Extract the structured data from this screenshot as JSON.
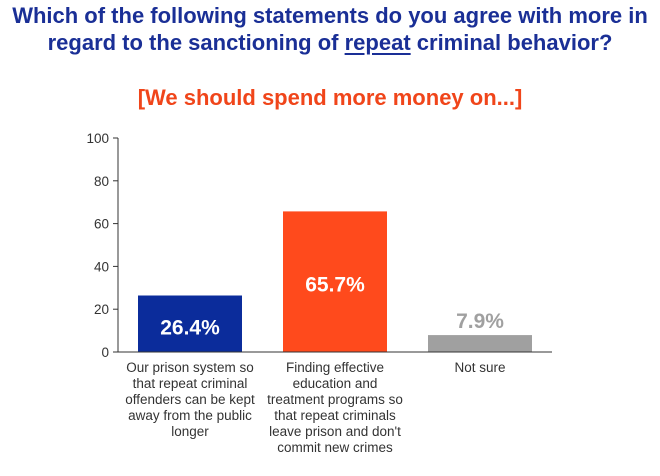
{
  "title": {
    "before": "Which of the following statements do you agree with more in regard to the sanctioning of ",
    "underlined": "repeat",
    "after": " criminal behavior?"
  },
  "subtitle": "[We should spend more money on...]",
  "colors": {
    "title": "#1a2f96",
    "subtitle": "#f0451a",
    "axis": "#333333"
  },
  "chart_data": {
    "type": "bar",
    "title": "Which of the following statements do you agree with more in regard to the sanctioning of repeat criminal behavior?",
    "subtitle": "[We should spend more money on...]",
    "categories": [
      "Our prison system so that repeat criminal offenders can be kept away from the public longer",
      "Finding effective education and treatment programs so that repeat criminals leave prison and don't commit new crimes",
      "Not sure"
    ],
    "values": [
      26.4,
      65.7,
      7.9
    ],
    "data_labels": [
      "26.4%",
      "65.7%",
      "7.9%"
    ],
    "bar_colors": [
      "#0b2c9b",
      "#ff4a1c",
      "#a0a0a0"
    ],
    "label_colors": [
      "#ffffff",
      "#ffffff",
      "#a0a0a0"
    ],
    "label_position": [
      "inside",
      "inside",
      "outside"
    ],
    "y_ticks": [
      0,
      20,
      40,
      60,
      80,
      100
    ],
    "ylim": [
      0,
      100
    ],
    "xlabel": "",
    "ylabel": "",
    "grid": false,
    "legend": "none"
  }
}
